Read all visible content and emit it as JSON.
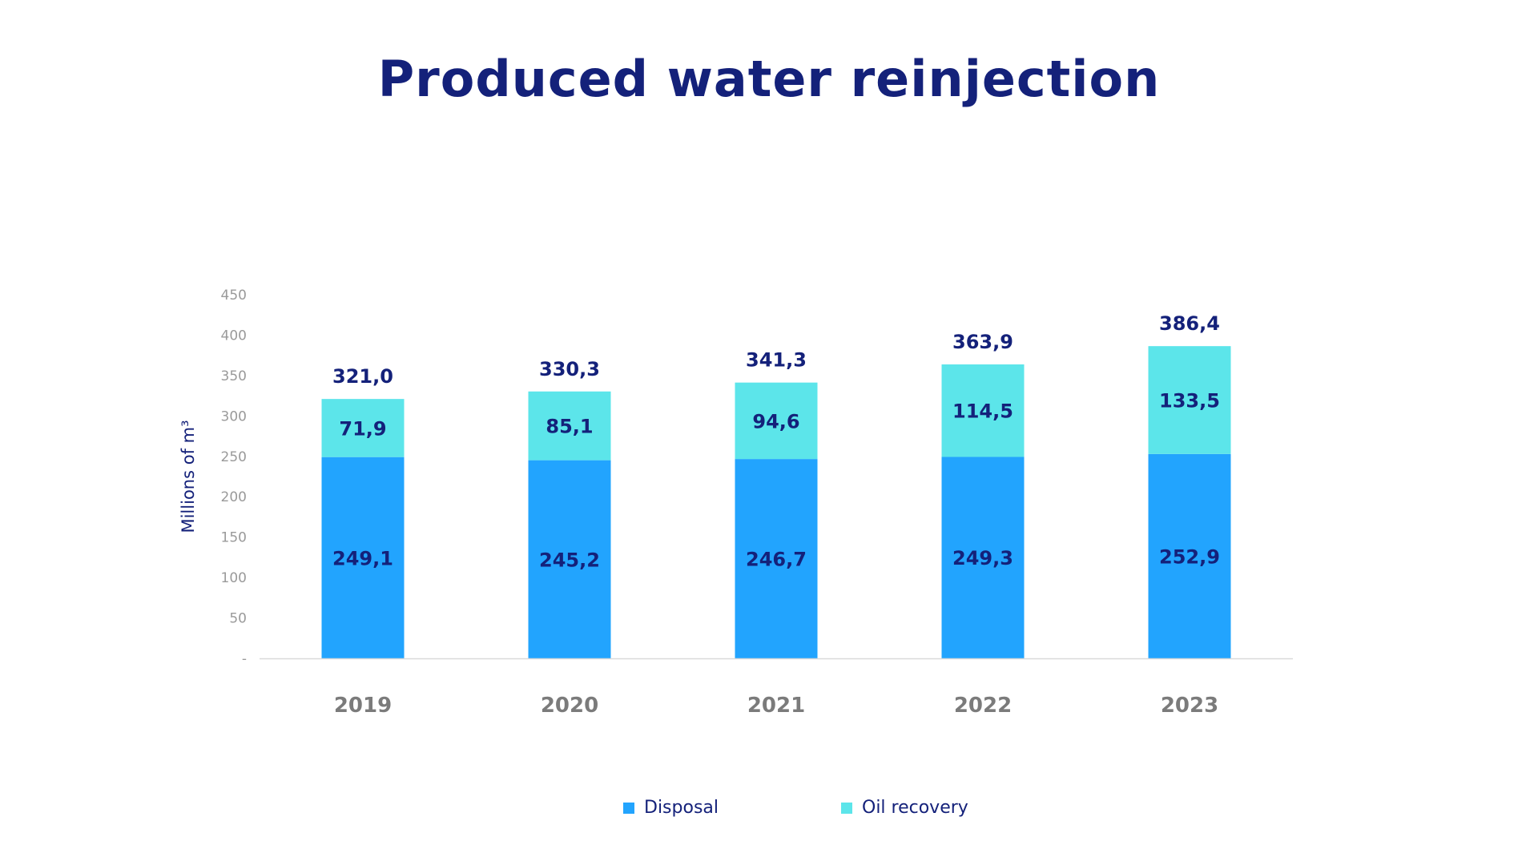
{
  "title": "Produced water reinjection",
  "chart_data": {
    "type": "bar",
    "stacked": true,
    "title": "Produced water reinjection",
    "xlabel": "",
    "ylabel": "Millions of m³",
    "ylim": [
      0,
      450
    ],
    "yticks": [
      "-",
      "50",
      "100",
      "150",
      "200",
      "250",
      "300",
      "350",
      "400",
      "450"
    ],
    "categories": [
      "2019",
      "2020",
      "2021",
      "2022",
      "2023"
    ],
    "series": [
      {
        "name": "Disposal",
        "values": [
          249.1,
          245.2,
          246.7,
          249.3,
          252.9
        ],
        "labels": [
          "249,1",
          "245,2",
          "246,7",
          "249,3",
          "252,9"
        ],
        "color": "#22a4fe"
      },
      {
        "name": "Oil recovery",
        "values": [
          71.9,
          85.1,
          94.6,
          114.5,
          133.5
        ],
        "labels": [
          "71,9",
          "85,1",
          "94,6",
          "114,5",
          "133,5"
        ],
        "color": "#5ce5ea"
      }
    ],
    "totals": [
      321.0,
      330.3,
      341.3,
      363.9,
      386.4
    ],
    "total_labels": [
      "321,0",
      "330,3",
      "341,3",
      "363,9",
      "386,4"
    ],
    "legend": "bottom-center",
    "grid": false
  },
  "colors": {
    "title": "#14217a",
    "label": "#14217a",
    "tick": "#9a9a9a",
    "category": "#7b7b7b",
    "axis": "#d9d9d9"
  }
}
